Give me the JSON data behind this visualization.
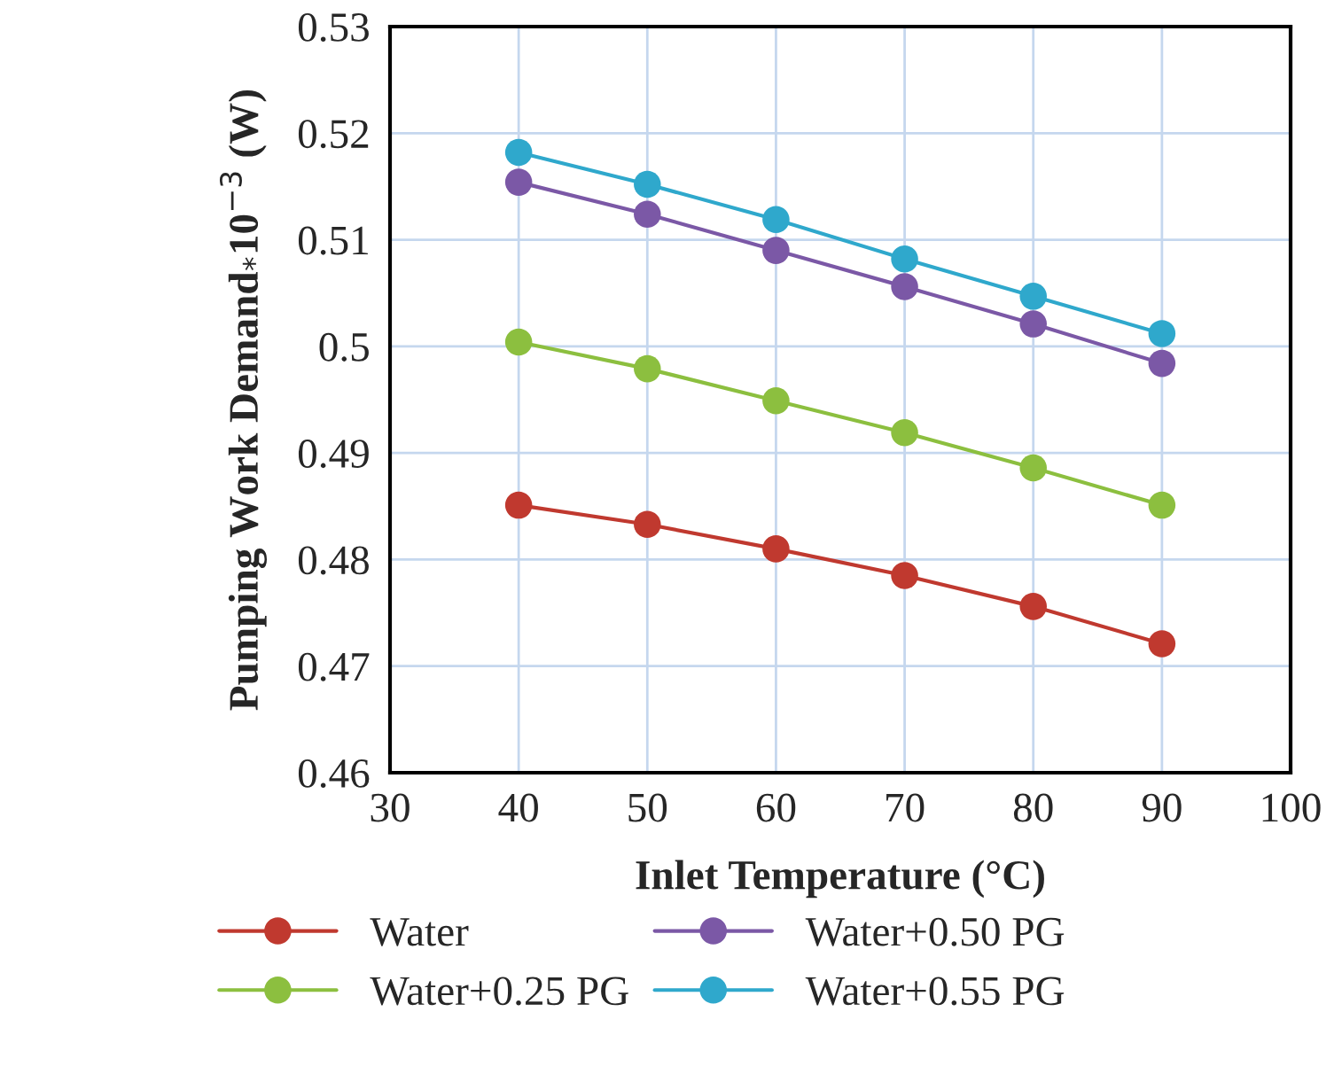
{
  "chart_data": {
    "type": "line",
    "xlabel": "Inlet Temperature (°C)",
    "ylabel": "Pumping Work Demand$_{*}$10$^{−3}$ (W)",
    "x": [
      40,
      50,
      60,
      70,
      80,
      90
    ],
    "series": [
      {
        "name": "Water",
        "color": "#c0392f",
        "values": [
          0.4851,
          0.4833,
          0.481,
          0.4785,
          0.4756,
          0.4721
        ]
      },
      {
        "name": "Water+0.25 PG",
        "color": "#8cbf3f",
        "values": [
          0.5004,
          0.4979,
          0.4949,
          0.4919,
          0.4886,
          0.4851
        ]
      },
      {
        "name": "Water+0.50 PG",
        "color": "#7b58a6",
        "values": [
          0.5154,
          0.5124,
          0.509,
          0.5056,
          0.5021,
          0.4984
        ]
      },
      {
        "name": "Water+0.55 PG",
        "color": "#2fa8cc",
        "values": [
          0.5182,
          0.5152,
          0.5119,
          0.5082,
          0.5047,
          0.5012
        ]
      }
    ],
    "xlim": [
      30,
      100
    ],
    "xticks": [
      30,
      40,
      50,
      60,
      70,
      80,
      90,
      100
    ],
    "ylim": [
      0.46,
      0.53
    ],
    "yticks": [
      0.46,
      0.47,
      0.48,
      0.49,
      {
        "value": 0.5,
        "label": "0.5"
      },
      0.51,
      0.52,
      0.53
    ],
    "grid": true,
    "legend": "bottom",
    "marker": "circle",
    "line_style": "solid"
  }
}
